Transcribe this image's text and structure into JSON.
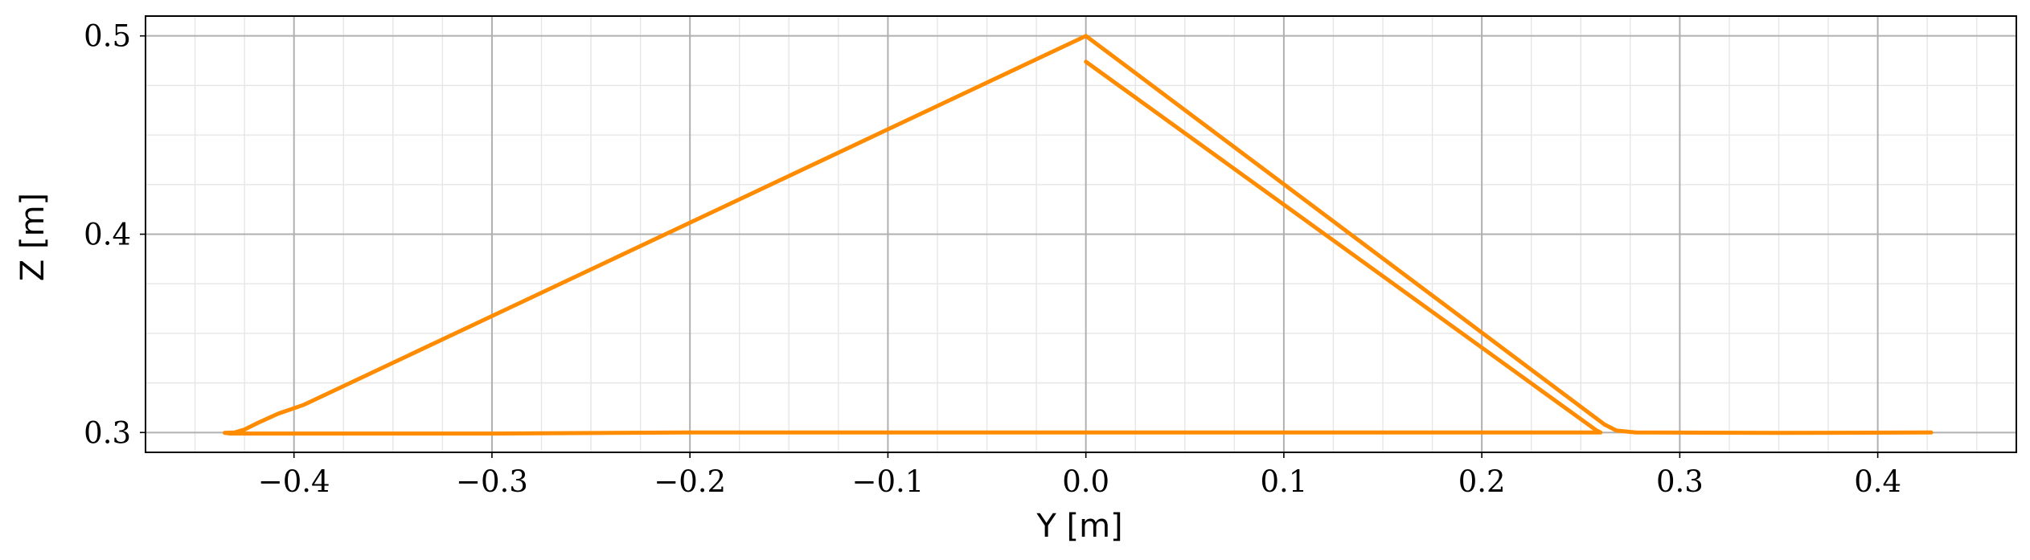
{
  "chart_data": {
    "type": "line",
    "title": "",
    "xlabel": "Y [m]",
    "ylabel": "Z [m]",
    "xlim": [
      -0.475,
      0.47
    ],
    "ylim": [
      0.29,
      0.51
    ],
    "x_ticks": [
      -0.4,
      -0.3,
      -0.2,
      -0.1,
      0.0,
      0.1,
      0.2,
      0.3,
      0.4
    ],
    "x_tick_labels": [
      "−0.4",
      "−0.3",
      "−0.2",
      "−0.1",
      "0.0",
      "0.1",
      "0.2",
      "0.3",
      "0.4"
    ],
    "y_ticks": [
      0.3,
      0.4,
      0.5
    ],
    "y_tick_labels": [
      "0.3",
      "0.4",
      "0.5"
    ],
    "x_minor_step": 0.025,
    "y_minor_step": 0.025,
    "grid": true,
    "legend": "none",
    "line_color": "#ff8c00",
    "series": [
      {
        "values": [
          [
            0.0,
            0.487
          ],
          [
            0.258,
            0.301
          ],
          [
            0.26,
            0.3
          ],
          [
            0.1,
            0.3
          ],
          [
            -0.1,
            0.3
          ],
          [
            -0.2,
            0.3
          ],
          [
            -0.3,
            0.2995
          ],
          [
            -0.38,
            0.2995
          ],
          [
            -0.432,
            0.2995
          ],
          [
            -0.435,
            0.2998
          ],
          [
            -0.43,
            0.3
          ],
          [
            -0.425,
            0.3015
          ],
          [
            -0.418,
            0.305
          ],
          [
            -0.408,
            0.3095
          ],
          [
            -0.395,
            0.314
          ],
          [
            0.0,
            0.5
          ],
          [
            0.262,
            0.304
          ],
          [
            0.268,
            0.301
          ],
          [
            0.278,
            0.3
          ],
          [
            0.35,
            0.2998
          ],
          [
            0.427,
            0.3
          ]
        ]
      }
    ]
  }
}
